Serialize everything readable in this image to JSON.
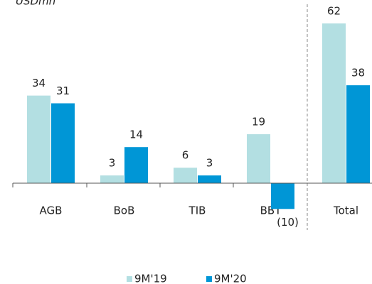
{
  "chart_data": {
    "type": "bar",
    "title": "USDmn",
    "categories": [
      "AGB",
      "BoB",
      "TIB",
      "BBT",
      "Total"
    ],
    "series": [
      {
        "name": "9M'19",
        "color": "#b3dfe2",
        "values": [
          34,
          3,
          6,
          19,
          62
        ]
      },
      {
        "name": "9M'20",
        "color": "#0096d6",
        "values": [
          31,
          14,
          3,
          -10,
          38
        ],
        "value_labels": [
          "31",
          "14",
          "3",
          "(10)",
          "38"
        ]
      }
    ],
    "legend": "bottom"
  }
}
